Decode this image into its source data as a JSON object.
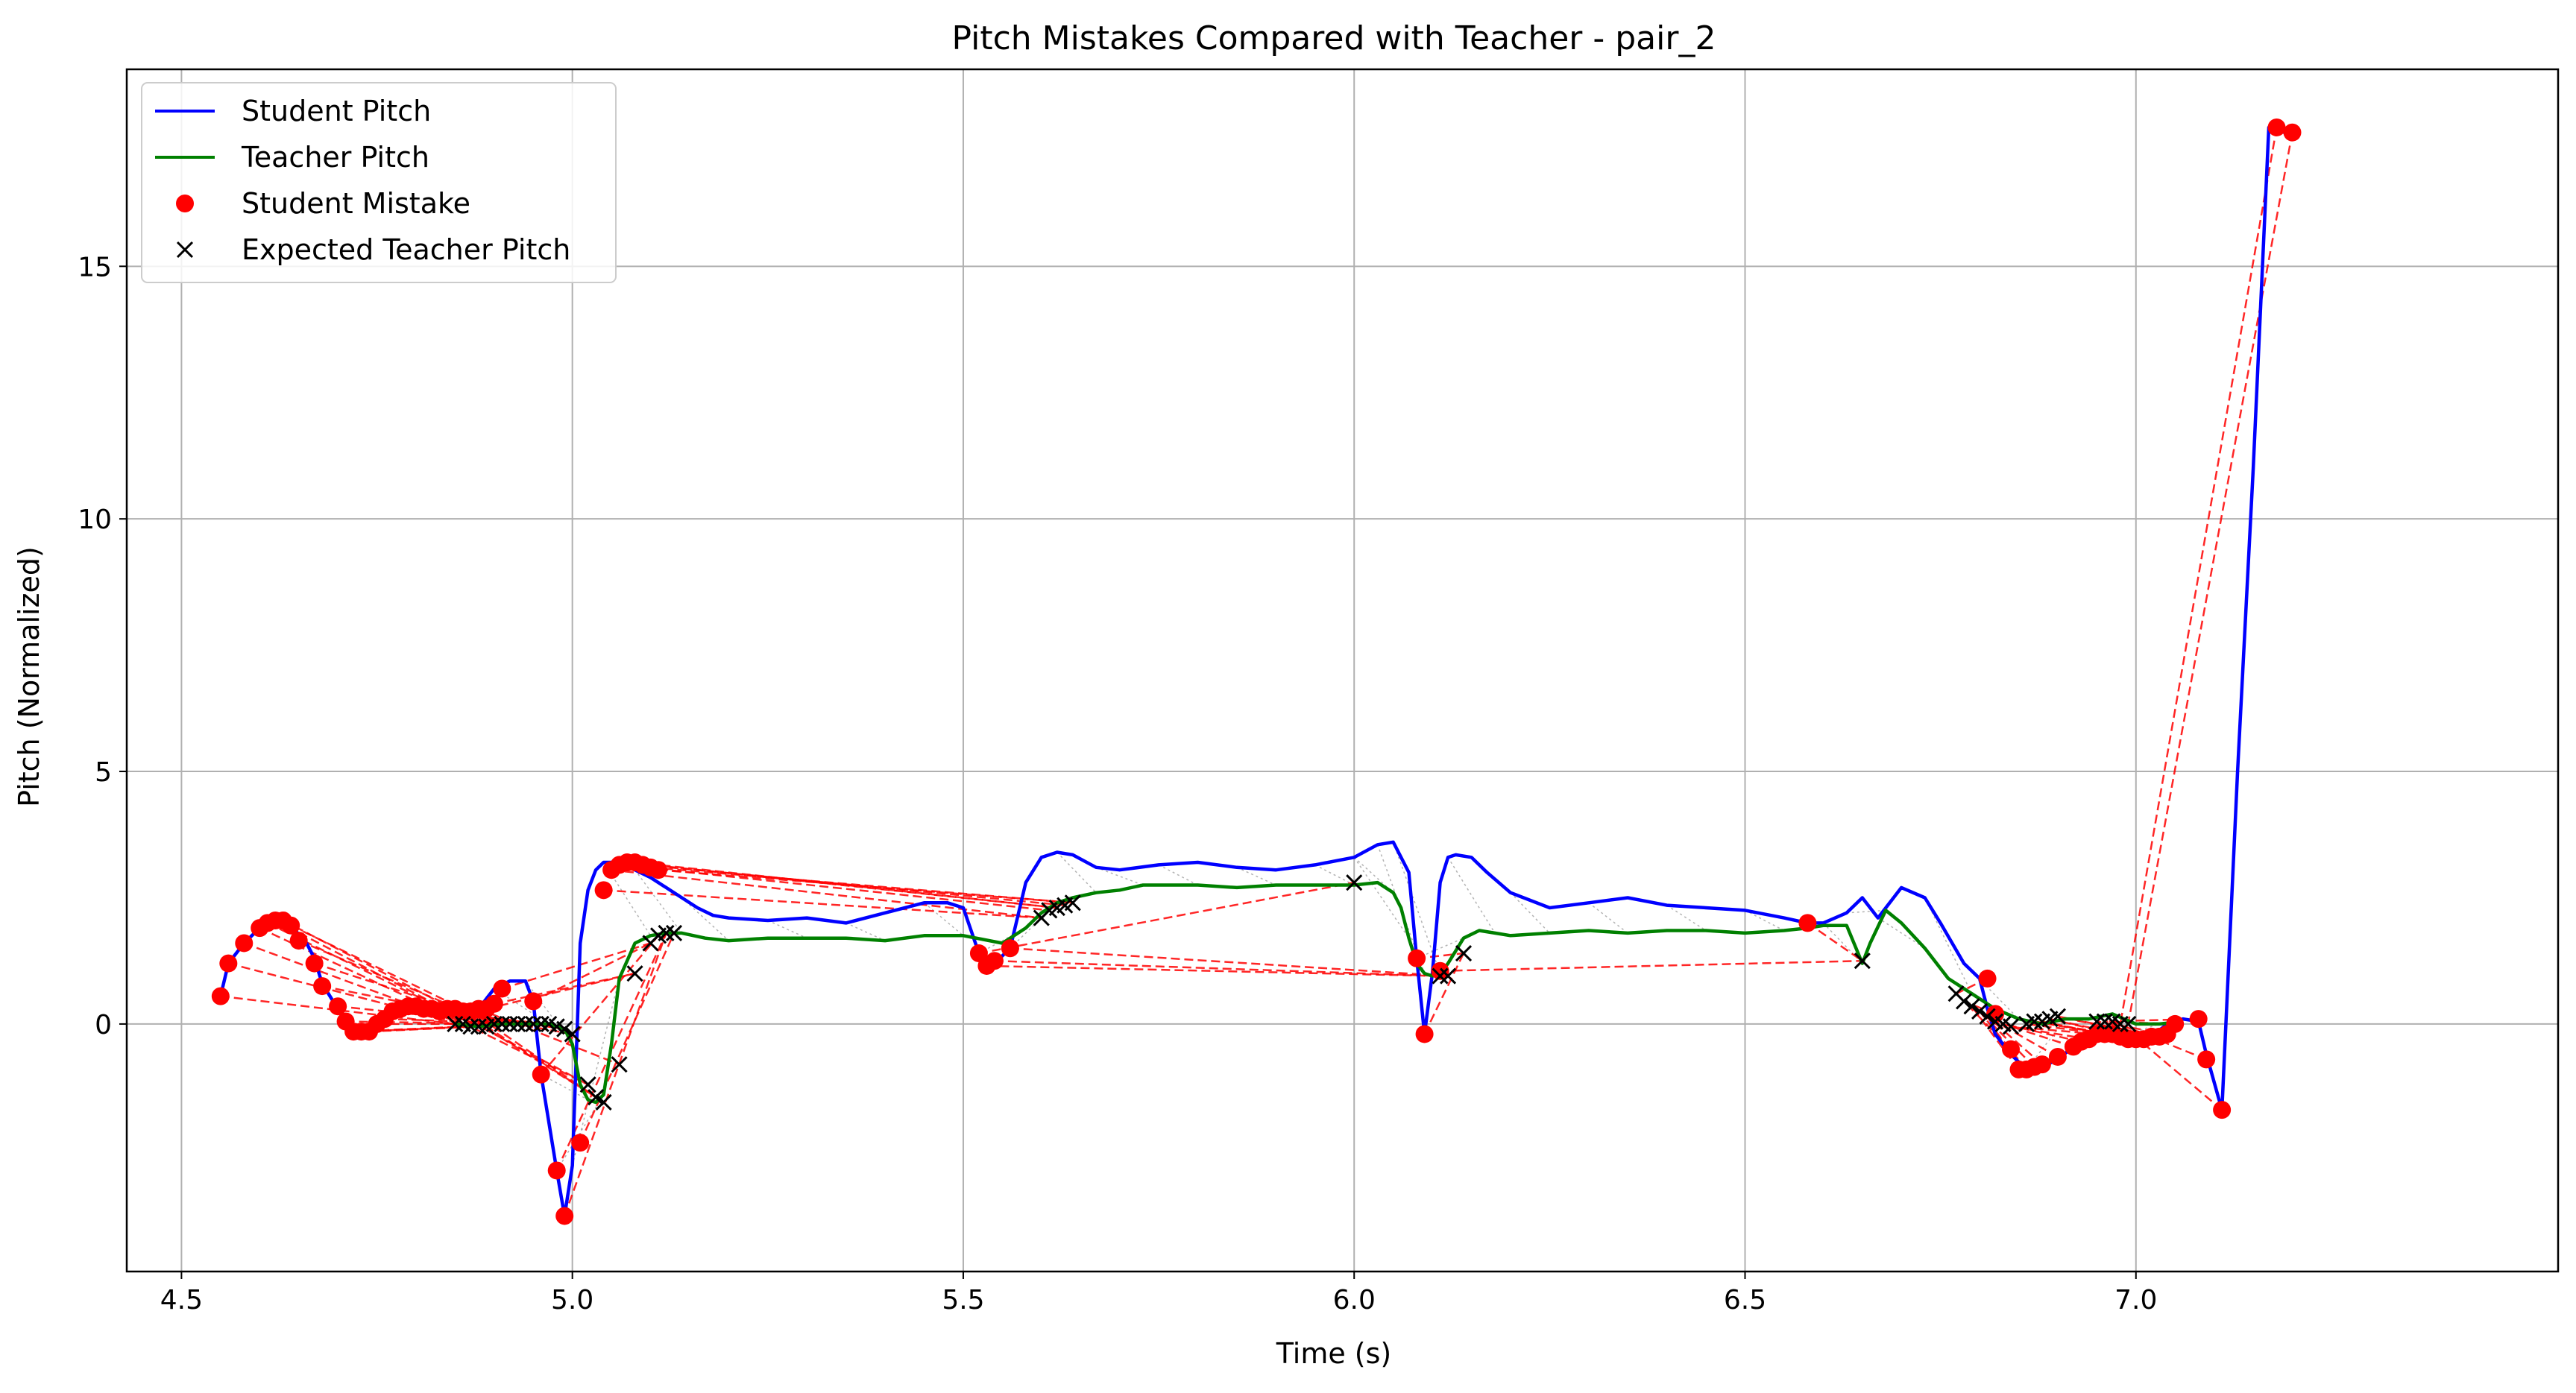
{
  "chart_data": {
    "type": "line",
    "title": "Pitch Mistakes Compared with Teacher - pair_2",
    "xlabel": "Time (s)",
    "ylabel": "Pitch (Normalized)",
    "xlim": [
      4.43,
      7.54
    ],
    "ylim": [
      -4.9,
      18.9
    ],
    "xticks": [
      4.5,
      5.0,
      5.5,
      6.0,
      6.5,
      7.0
    ],
    "xtick_labels": [
      "4.5",
      "5.0",
      "5.5",
      "6.0",
      "6.5",
      "7.0"
    ],
    "yticks": [
      0,
      5,
      10,
      15
    ],
    "ytick_labels": [
      "0",
      "5",
      "10",
      "15"
    ],
    "grid": true,
    "legend": {
      "position": "top-left",
      "entries": [
        "Student Pitch",
        "Teacher Pitch",
        "Student Mistake",
        "Expected Teacher Pitch"
      ]
    },
    "colors": {
      "student": "#0000ff",
      "teacher": "#008000",
      "mistake": "#ff0000",
      "expected": "#000000",
      "link": "#ff0000",
      "alignment": "#808080",
      "grid": "#b0b0b0"
    },
    "series": [
      {
        "name": "Student Pitch",
        "x": [
          4.55,
          4.56,
          4.58,
          4.6,
          4.62,
          4.64,
          4.66,
          4.67,
          4.68,
          4.7,
          4.72,
          4.74,
          4.76,
          4.78,
          4.8,
          4.82,
          4.84,
          4.86,
          4.88,
          4.9,
          4.92,
          4.94,
          4.95,
          4.96,
          4.98,
          4.99,
          5.0,
          5.01,
          5.02,
          5.03,
          5.04,
          5.06,
          5.08,
          5.1,
          5.12,
          5.14,
          5.16,
          5.18,
          5.2,
          5.25,
          5.3,
          5.35,
          5.4,
          5.45,
          5.48,
          5.5,
          5.52,
          5.53,
          5.54,
          5.56,
          5.58,
          5.6,
          5.62,
          5.64,
          5.67,
          5.7,
          5.75,
          5.8,
          5.85,
          5.9,
          5.95,
          6.0,
          6.03,
          6.05,
          6.07,
          6.08,
          6.09,
          6.1,
          6.11,
          6.12,
          6.13,
          6.15,
          6.17,
          6.2,
          6.25,
          6.3,
          6.35,
          6.4,
          6.45,
          6.5,
          6.55,
          6.58,
          6.6,
          6.63,
          6.65,
          6.67,
          6.7,
          6.73,
          6.75,
          6.78,
          6.8,
          6.81,
          6.82,
          6.84,
          6.86,
          6.88,
          6.9,
          6.92,
          6.94,
          6.96,
          6.98,
          7.0,
          7.02,
          7.04,
          7.06,
          7.08,
          7.09,
          7.11,
          7.13,
          7.15,
          7.17,
          7.18,
          7.19,
          7.2
        ],
        "y": [
          0.55,
          1.2,
          1.6,
          1.9,
          2.05,
          1.95,
          1.6,
          1.3,
          0.8,
          0.3,
          -0.1,
          -0.1,
          0.1,
          0.3,
          0.35,
          0.3,
          0.25,
          0.25,
          0.3,
          0.7,
          0.85,
          0.85,
          0.45,
          -1.0,
          -2.9,
          -3.8,
          -2.8,
          1.6,
          2.65,
          3.05,
          3.2,
          3.2,
          3.05,
          2.9,
          2.7,
          2.5,
          2.3,
          2.15,
          2.1,
          2.05,
          2.1,
          2.0,
          2.2,
          2.4,
          2.4,
          2.3,
          1.4,
          1.1,
          1.2,
          1.5,
          2.8,
          3.3,
          3.4,
          3.35,
          3.1,
          3.05,
          3.15,
          3.2,
          3.1,
          3.05,
          3.15,
          3.3,
          3.55,
          3.6,
          3.0,
          1.3,
          -0.2,
          1.0,
          2.8,
          3.3,
          3.35,
          3.3,
          3.0,
          2.6,
          2.3,
          2.4,
          2.5,
          2.35,
          2.3,
          2.25,
          2.1,
          2.0,
          2.0,
          2.2,
          2.5,
          2.1,
          2.7,
          2.5,
          2.0,
          1.2,
          0.9,
          0.3,
          -0.2,
          -0.6,
          -0.9,
          -0.85,
          -0.7,
          -0.45,
          -0.25,
          -0.2,
          -0.25,
          -0.3,
          -0.25,
          0.0,
          0.1,
          0.05,
          -0.6,
          -1.7,
          5.0,
          11.0,
          17.75,
          17.7,
          17.65,
          17.6
        ]
      },
      {
        "name": "Teacher Pitch",
        "x": [
          4.85,
          4.88,
          4.91,
          4.94,
          4.97,
          4.99,
          5.0,
          5.01,
          5.02,
          5.03,
          5.04,
          5.05,
          5.06,
          5.08,
          5.1,
          5.12,
          5.14,
          5.17,
          5.2,
          5.25,
          5.3,
          5.35,
          5.4,
          5.45,
          5.5,
          5.55,
          5.58,
          5.6,
          5.62,
          5.64,
          5.67,
          5.7,
          5.73,
          5.76,
          5.8,
          5.85,
          5.9,
          5.95,
          6.0,
          6.03,
          6.05,
          6.06,
          6.07,
          6.08,
          6.09,
          6.1,
          6.11,
          6.12,
          6.14,
          6.16,
          6.18,
          6.2,
          6.25,
          6.3,
          6.35,
          6.4,
          6.45,
          6.5,
          6.55,
          6.58,
          6.6,
          6.63,
          6.65,
          6.66,
          6.68,
          6.7,
          6.73,
          6.76,
          6.79,
          6.82,
          6.85,
          6.88,
          6.91,
          6.94,
          6.97,
          7.0,
          7.03,
          7.06
        ],
        "y": [
          0.0,
          -0.05,
          0.0,
          0.0,
          0.0,
          -0.1,
          -0.4,
          -1.2,
          -1.5,
          -1.55,
          -1.4,
          -0.4,
          0.9,
          1.6,
          1.75,
          1.8,
          1.8,
          1.7,
          1.65,
          1.7,
          1.7,
          1.7,
          1.65,
          1.75,
          1.75,
          1.6,
          1.9,
          2.2,
          2.4,
          2.5,
          2.6,
          2.65,
          2.75,
          2.75,
          2.75,
          2.7,
          2.75,
          2.75,
          2.75,
          2.8,
          2.6,
          2.3,
          1.7,
          1.2,
          1.0,
          0.95,
          1.0,
          1.2,
          1.7,
          1.85,
          1.8,
          1.75,
          1.8,
          1.85,
          1.8,
          1.85,
          1.85,
          1.8,
          1.85,
          1.9,
          1.95,
          1.95,
          1.2,
          1.6,
          2.25,
          2.0,
          1.5,
          0.9,
          0.6,
          0.3,
          0.1,
          0.0,
          0.1,
          0.1,
          0.2,
          0.0,
          0.0,
          0.05
        ]
      },
      {
        "name": "Student Mistake",
        "x": [
          4.55,
          4.56,
          4.58,
          4.6,
          4.61,
          4.62,
          4.63,
          4.64,
          4.65,
          4.67,
          4.68,
          4.7,
          4.71,
          4.72,
          4.73,
          4.74,
          4.75,
          4.76,
          4.77,
          4.78,
          4.79,
          4.8,
          4.81,
          4.82,
          4.83,
          4.84,
          4.85,
          4.86,
          4.87,
          4.88,
          4.89,
          4.9,
          4.91,
          4.95,
          4.96,
          4.98,
          4.99,
          5.01,
          5.04,
          5.05,
          5.06,
          5.07,
          5.08,
          5.09,
          5.1,
          5.11,
          5.52,
          5.53,
          5.54,
          5.56,
          6.08,
          6.09,
          6.11,
          6.58,
          6.81,
          6.82,
          6.84,
          6.85,
          6.86,
          6.87,
          6.88,
          6.9,
          6.92,
          6.93,
          6.94,
          6.95,
          6.96,
          6.97,
          6.98,
          6.99,
          7.0,
          7.01,
          7.02,
          7.03,
          7.04,
          7.05,
          7.08,
          7.09,
          7.11,
          7.18,
          7.2
        ],
        "y": [
          0.55,
          1.2,
          1.6,
          1.9,
          2.0,
          2.05,
          2.05,
          1.95,
          1.65,
          1.2,
          0.75,
          0.35,
          0.05,
          -0.15,
          -0.15,
          -0.15,
          0.0,
          0.1,
          0.25,
          0.3,
          0.35,
          0.35,
          0.3,
          0.3,
          0.25,
          0.3,
          0.3,
          0.25,
          0.25,
          0.3,
          0.3,
          0.4,
          0.7,
          0.45,
          -1.0,
          -2.9,
          -3.8,
          -2.35,
          2.65,
          3.05,
          3.15,
          3.2,
          3.2,
          3.15,
          3.1,
          3.05,
          1.4,
          1.15,
          1.25,
          1.5,
          1.3,
          -0.2,
          1.05,
          2.0,
          0.9,
          0.2,
          -0.5,
          -0.9,
          -0.9,
          -0.85,
          -0.8,
          -0.65,
          -0.45,
          -0.35,
          -0.3,
          -0.2,
          -0.2,
          -0.2,
          -0.25,
          -0.3,
          -0.3,
          -0.3,
          -0.25,
          -0.25,
          -0.2,
          0.0,
          0.1,
          -0.7,
          -1.7,
          17.75,
          17.65
        ]
      },
      {
        "name": "Expected Teacher Pitch",
        "x": [
          4.85,
          4.86,
          4.87,
          4.88,
          4.89,
          4.9,
          4.91,
          4.92,
          4.93,
          4.94,
          4.95,
          4.96,
          4.97,
          4.98,
          4.99,
          5.0,
          5.02,
          5.03,
          5.04,
          5.06,
          5.08,
          5.1,
          5.11,
          5.12,
          5.13,
          5.6,
          5.61,
          5.62,
          5.63,
          5.64,
          6.0,
          6.11,
          6.12,
          6.14,
          6.65,
          6.77,
          6.78,
          6.79,
          6.8,
          6.81,
          6.82,
          6.83,
          6.84,
          6.86,
          6.87,
          6.88,
          6.89,
          6.9,
          6.95,
          6.96,
          6.97,
          6.98,
          6.99
        ],
        "y": [
          0.0,
          0.0,
          -0.05,
          -0.05,
          -0.05,
          0.0,
          0.0,
          0.0,
          0.0,
          0.0,
          0.0,
          0.0,
          0.0,
          -0.05,
          -0.1,
          -0.2,
          -1.2,
          -1.45,
          -1.55,
          -0.8,
          1.0,
          1.6,
          1.75,
          1.8,
          1.8,
          2.1,
          2.25,
          2.3,
          2.35,
          2.4,
          2.8,
          0.95,
          0.95,
          1.4,
          1.25,
          0.6,
          0.45,
          0.35,
          0.25,
          0.15,
          0.05,
          0.0,
          -0.05,
          0.0,
          0.05,
          0.05,
          0.1,
          0.15,
          0.05,
          0.05,
          0.05,
          0.0,
          0.0
        ]
      }
    ]
  }
}
